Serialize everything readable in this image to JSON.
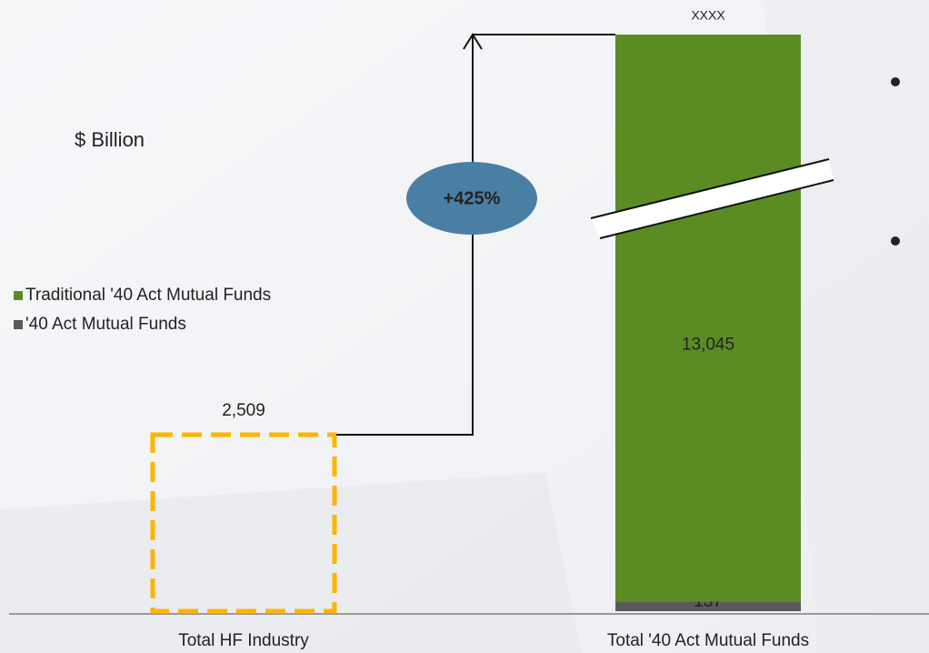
{
  "chart_data": {
    "type": "bar",
    "unit_label": "$ Billion",
    "categories": [
      "Total HF Industry",
      "Total '40 Act Mutual Funds"
    ],
    "series": [
      {
        "name": "'40 Act Mutual Funds",
        "color": "#5a5a5a",
        "values": [
          null,
          137
        ],
        "value_labels": [
          null,
          "137"
        ]
      },
      {
        "name": "Traditional '40 Act Mutual Funds",
        "color": "#5b8c23",
        "values": [
          null,
          13045
        ],
        "value_labels": [
          null,
          "13,045"
        ]
      },
      {
        "color": "#ffb400",
        "style": "dashed",
        "values": [
          2509,
          null
        ],
        "value_labels": [
          "2,509",
          null
        ]
      }
    ],
    "total_label": "XXXX",
    "growth_annotation": "+425%",
    "axis_break": true
  }
}
